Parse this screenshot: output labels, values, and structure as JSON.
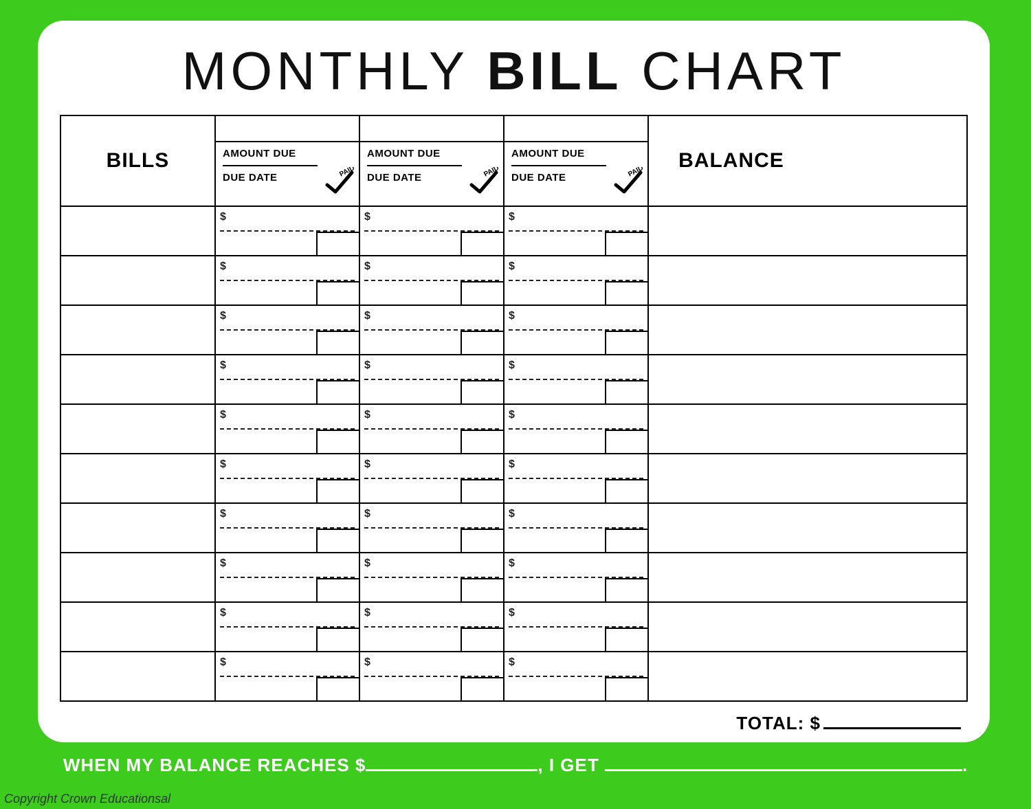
{
  "title": {
    "pre": "MONTHLY ",
    "bold": "BILL",
    "post": " CHART"
  },
  "headers": {
    "bills": "BILLS",
    "balance": "BALANCE",
    "amount_due": "AMOUNT DUE",
    "due_date": "DUE DATE",
    "paid_label": "PAID"
  },
  "currency_symbol": "$",
  "row_count": 10,
  "month_columns": 3,
  "total_label": "TOTAL: $",
  "goal": {
    "part1": "WHEN MY BALANCE REACHES $",
    "part2": ", I GET ",
    "part3": "."
  },
  "copyright": "Copyright Crown Educationsal",
  "colors": {
    "frame": "#3dcc1e",
    "card": "#ffffff",
    "ink": "#000000"
  }
}
